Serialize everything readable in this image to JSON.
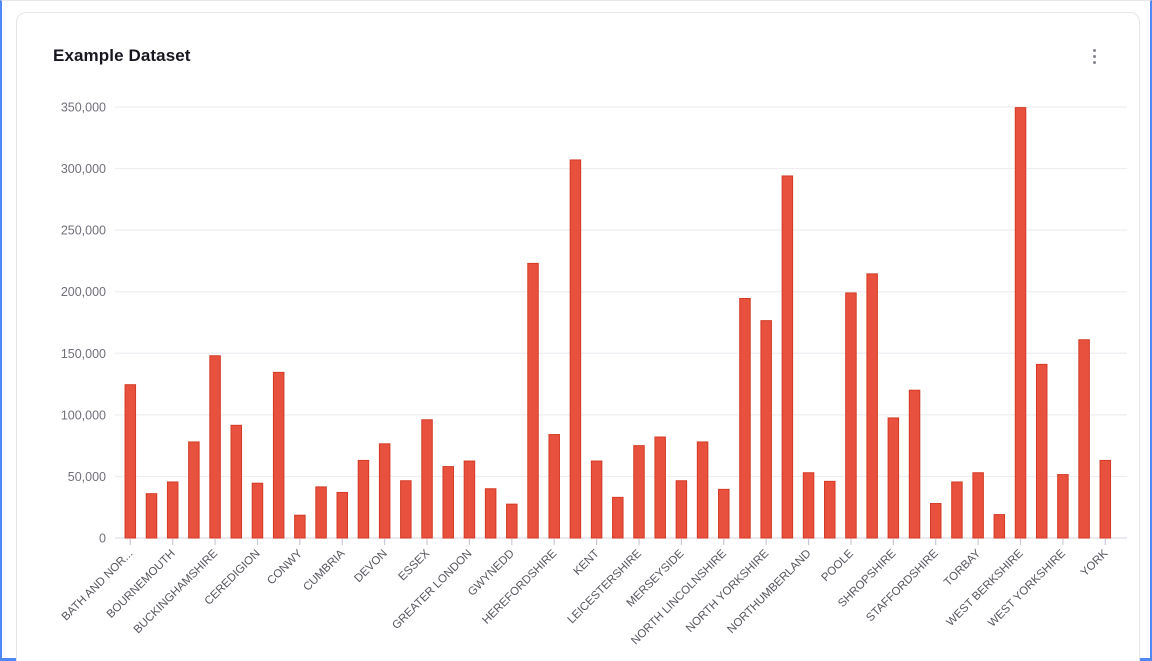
{
  "card": {
    "title": "Example Dataset",
    "menu_icon": "kebab-menu"
  },
  "chart_data": {
    "type": "bar",
    "title": "Example Dataset",
    "ylabel": "",
    "xlabel": "",
    "ylim": [
      0,
      350000
    ],
    "y_tick_step": 50000,
    "y_tick_labels": [
      "0",
      "50,000",
      "100,000",
      "150,000",
      "200,000",
      "250,000",
      "300,000",
      "350,000"
    ],
    "grid": true,
    "legend": "none",
    "bar_color": "#e8513d",
    "bar_border_color": "#d43b26",
    "x_tick_every": 2,
    "categories": [
      "BATH AND NOR...",
      "",
      "BOURNEMOUTH",
      "",
      "BUCKINGHAMSHIRE",
      "",
      "CEREDIGION",
      "",
      "CONWY",
      "",
      "CUMBRIA",
      "",
      "DEVON",
      "",
      "ESSEX",
      "",
      "GREATER LONDON",
      "",
      "GWYNEDD",
      "",
      "HEREFORDSHIRE",
      "",
      "KENT",
      "",
      "LEICESTERSHIRE",
      "",
      "MERSEYSIDE",
      "",
      "NORTH LINCOLNSHIRE",
      "",
      "NORTH YORKSHIRE",
      "",
      "NORTHUMBERLAND",
      "",
      "POOLE",
      "",
      "SHROPSHIRE",
      "",
      "STAFFORDSHIRE",
      "",
      "TORBAY",
      "",
      "WEST BERKSHIRE",
      "",
      "WEST YORKSHIRE",
      "",
      "YORK"
    ],
    "values": [
      124500,
      36000,
      45500,
      78000,
      148000,
      91500,
      44500,
      134500,
      18500,
      41500,
      37000,
      63000,
      76500,
      46500,
      96000,
      58000,
      62500,
      40000,
      27500,
      223000,
      84000,
      307000,
      62500,
      33000,
      75000,
      82000,
      46500,
      78000,
      39500,
      194500,
      176500,
      294000,
      53000,
      46000,
      199000,
      214500,
      97500,
      120000,
      28000,
      45500,
      53000,
      19000,
      349500,
      141000,
      51500,
      161000,
      63000
    ]
  }
}
